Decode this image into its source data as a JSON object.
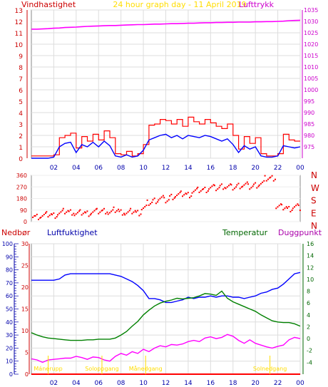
{
  "header": {
    "left_label": "Vindhastighet",
    "title": "24 hour graph day - 11 April 2019",
    "right_label": "Lufttrykk"
  },
  "legend": {
    "nedbor": "Nedbør",
    "luftfuktighet": "Luftfuktighet",
    "temperatur": "Temperatur",
    "duggpunkt": "Duggpunkt"
  },
  "colors": {
    "wind": "#ff0000",
    "wind_avg": "#0000ff",
    "pressure": "#ff00ff",
    "direction": "#ff0000",
    "humidity": "#0000ff",
    "temperature": "#008000",
    "dewpoint": "#ff00ff",
    "rain": "#ff0000",
    "sun": "#ffdd00",
    "axis_red": "#cc0000",
    "axis_pink": "#cc00cc",
    "axis_blue": "#0000aa",
    "axis_green": "#006600"
  },
  "chart_data": [
    {
      "type": "line",
      "name": "wind-and-pressure",
      "x": [
        0,
        0.5,
        1,
        1.5,
        2,
        2.5,
        3,
        3.5,
        4,
        4.5,
        5,
        5.5,
        6,
        6.5,
        7,
        7.5,
        8,
        8.5,
        9,
        9.5,
        10,
        10.5,
        11,
        11.5,
        12,
        12.5,
        13,
        13.5,
        14,
        14.5,
        15,
        15.5,
        16,
        16.5,
        17,
        17.5,
        18,
        18.5,
        19,
        19.5,
        20,
        20.5,
        21,
        21.5,
        22,
        22.5,
        23,
        23.5,
        24
      ],
      "series": [
        {
          "values": [
            0.2,
            0.2,
            0.2,
            0.2,
            0.3,
            1.8,
            2.0,
            2.2,
            0.9,
            1.9,
            1.5,
            2.1,
            1.6,
            2.4,
            1.8,
            0.4,
            0.3,
            0.6,
            0.2,
            0.4,
            1.2,
            2.9,
            3.0,
            3.4,
            3.3,
            3.0,
            3.4,
            2.8,
            3.6,
            3.2,
            3.0,
            3.4,
            3.1,
            2.8,
            2.6,
            3.0,
            2.0,
            0.8,
            1.9,
            1.3,
            1.8,
            0.4,
            0.2,
            0.2,
            0.4,
            2.1,
            1.6,
            1.5,
            1.5
          ]
        },
        {
          "values": [
            0.0,
            0.0,
            0.0,
            0.0,
            0.1,
            1.0,
            1.3,
            1.4,
            0.5,
            1.2,
            1.0,
            1.4,
            1.0,
            1.5,
            1.1,
            0.2,
            0.1,
            0.3,
            0.1,
            0.2,
            0.7,
            1.6,
            1.8,
            2.0,
            2.1,
            1.8,
            2.0,
            1.7,
            2.0,
            1.9,
            1.8,
            2.0,
            1.9,
            1.7,
            1.5,
            1.7,
            1.2,
            0.5,
            1.1,
            0.8,
            1.0,
            0.2,
            0.1,
            0.1,
            0.2,
            1.1,
            1.0,
            0.9,
            1.0
          ]
        },
        {
          "values": [
            1026.6,
            1026.6,
            1026.7,
            1026.8,
            1027.0,
            1027.1,
            1027.3,
            1027.4,
            1027.5,
            1027.7,
            1027.8,
            1027.9,
            1028.0,
            1028.1,
            1028.2,
            1028.2,
            1028.3,
            1028.4,
            1028.5,
            1028.6,
            1028.6,
            1028.7,
            1028.8,
            1028.8,
            1028.9,
            1029.0,
            1029.0,
            1029.1,
            1029.2,
            1029.2,
            1029.3,
            1029.4,
            1029.4,
            1029.5,
            1029.5,
            1029.6,
            1029.6,
            1029.7,
            1029.7,
            1029.7,
            1029.8,
            1029.8,
            1029.9,
            1029.9,
            1030.0,
            1030.1,
            1030.3,
            1030.4,
            1030.5
          ]
        }
      ],
      "ylim": [
        0,
        13
      ],
      "y2lim": [
        970,
        1035
      ],
      "yticks": [
        "0",
        "1",
        "2",
        "3",
        "4",
        "5",
        "6",
        "7",
        "8",
        "9",
        "10",
        "11",
        "12",
        "13"
      ],
      "y2ticks": [
        "975",
        "980",
        "985",
        "990",
        "995",
        "1000",
        "1005",
        "1010",
        "1015",
        "1020",
        "1025",
        "1030",
        "1035"
      ],
      "xticks": [
        "02",
        "04",
        "06",
        "08",
        "10",
        "12",
        "14",
        "16",
        "18",
        "20",
        "22",
        "00"
      ],
      "grid": true
    },
    {
      "type": "scatter",
      "name": "wind-direction",
      "x": [
        0,
        0.5,
        1,
        1.5,
        2,
        2.5,
        3,
        3.5,
        4,
        4.5,
        5,
        5.5,
        6,
        6.5,
        7,
        7.5,
        8,
        8.5,
        9,
        9.5,
        10,
        10.5,
        11,
        11.5,
        12,
        12.5,
        13,
        13.5,
        14,
        14.5,
        15,
        15.5,
        16,
        16.5,
        17,
        17.5,
        18,
        18.5,
        19,
        19.5,
        20,
        20.5,
        21,
        21.5,
        22,
        22.5,
        23,
        23.5,
        24
      ],
      "values": [
        45,
        45,
        50,
        60,
        55,
        70,
        85,
        80,
        65,
        75,
        70,
        80,
        85,
        90,
        75,
        95,
        80,
        70,
        85,
        75,
        110,
        150,
        170,
        185,
        170,
        200,
        210,
        220,
        215,
        240,
        250,
        255,
        270,
        265,
        280,
        275,
        270,
        285,
        290,
        275,
        290,
        300,
        340,
        345,
        120,
        115,
        105,
        120,
        110
      ],
      "ylim": [
        0,
        360
      ],
      "yticks": [
        "0",
        "90",
        "180",
        "270",
        "360"
      ],
      "compass": [
        "N",
        "W",
        "S",
        "E",
        "N"
      ],
      "xticks": [
        "02",
        "04",
        "06",
        "08",
        "10",
        "12",
        "14",
        "16",
        "18",
        "20",
        "22",
        "00"
      ]
    },
    {
      "type": "line",
      "name": "humidity-temperature",
      "x": [
        0,
        0.5,
        1,
        1.5,
        2,
        2.5,
        3,
        3.5,
        4,
        4.5,
        5,
        5.5,
        6,
        6.5,
        7,
        7.5,
        8,
        8.5,
        9,
        9.5,
        10,
        10.5,
        11,
        11.5,
        12,
        12.5,
        13,
        13.5,
        14,
        14.5,
        15,
        15.5,
        16,
        16.5,
        17,
        17.5,
        18,
        18.5,
        19,
        19.5,
        20,
        20.5,
        21,
        21.5,
        22,
        22.5,
        23,
        23.5,
        24
      ],
      "series": [
        {
          "values": [
            72,
            72,
            72,
            72,
            72,
            73,
            76,
            77,
            77,
            77,
            77,
            77,
            77,
            77,
            77,
            76,
            75,
            73,
            71,
            68,
            64,
            58,
            58,
            57,
            55,
            55,
            56,
            57,
            59,
            58,
            59,
            59,
            60,
            59,
            60,
            60,
            59,
            59,
            58,
            59,
            60,
            62,
            63,
            65,
            66,
            69,
            73,
            77,
            78
          ]
        },
        {
          "values": [
            1.0,
            0.6,
            0.3,
            0.1,
            0.0,
            -0.1,
            -0.2,
            -0.3,
            -0.3,
            -0.3,
            -0.2,
            -0.2,
            -0.1,
            -0.1,
            -0.1,
            0.1,
            0.6,
            1.2,
            2.1,
            2.9,
            4.0,
            4.8,
            5.5,
            6.0,
            6.3,
            6.5,
            6.8,
            6.7,
            6.8,
            6.9,
            7.2,
            7.6,
            7.5,
            7.3,
            8.0,
            6.8,
            6.2,
            5.8,
            5.4,
            5.0,
            4.6,
            4.0,
            3.5,
            3.0,
            2.8,
            2.7,
            2.7,
            2.5,
            2.1
          ]
        },
        {
          "values": [
            -3.4,
            -3.6,
            -4.0,
            -3.6,
            -3.5,
            -3.4,
            -3.3,
            -3.3,
            -3.0,
            -3.2,
            -3.5,
            -3.1,
            -3.2,
            -3.6,
            -3.8,
            -3.0,
            -2.5,
            -2.8,
            -2.2,
            -2.5,
            -1.8,
            -2.2,
            -1.6,
            -1.2,
            -1.4,
            -1.0,
            -1.1,
            -0.9,
            -0.5,
            -0.3,
            -0.5,
            0.1,
            0.3,
            0.0,
            0.2,
            0.7,
            0.4,
            -0.3,
            -0.8,
            -0.2,
            -0.8,
            -1.1,
            -1.4,
            -1.6,
            -1.3,
            -1.1,
            -0.2,
            0.2,
            0.0
          ]
        }
      ],
      "rain": {
        "values": [
          0,
          0,
          0,
          0,
          0,
          0,
          0,
          0,
          0,
          0,
          0,
          0,
          0,
          0,
          0,
          0,
          0,
          0,
          0,
          0,
          0,
          0,
          0,
          0,
          0,
          0,
          0,
          0,
          0,
          0,
          0,
          0,
          0,
          0,
          0,
          0,
          0,
          0,
          0,
          0,
          0,
          0,
          0,
          0,
          0,
          0,
          0,
          0,
          0
        ]
      },
      "nedbor_lim": [
        0,
        100
      ],
      "humidity_lim": [
        0,
        30
      ],
      "temp_lim": [
        -6,
        16
      ],
      "nedbor_ticks": [
        "0",
        "10",
        "20",
        "30",
        "40",
        "50",
        "60",
        "70",
        "80",
        "90",
        "100"
      ],
      "humidity_ticks": [
        "0",
        "5",
        "10",
        "15",
        "20",
        "25",
        "30"
      ],
      "temp_ticks": [
        "-4",
        "-2",
        "0",
        "2",
        "4",
        "6",
        "8",
        "10",
        "12",
        "14",
        "16"
      ],
      "xticks": [
        "02",
        "04",
        "06",
        "08",
        "10",
        "12",
        "14",
        "16",
        "18",
        "20",
        "22",
        "00"
      ],
      "sun_labels": [
        {
          "time": 1.5,
          "text": "Mánerupp"
        },
        {
          "time": 6.3,
          "text": "Soloppgang"
        },
        {
          "time": 10.2,
          "text": "Månedgang"
        },
        {
          "time": 21.3,
          "text": "Solnedgang"
        }
      ],
      "grid": true
    }
  ]
}
